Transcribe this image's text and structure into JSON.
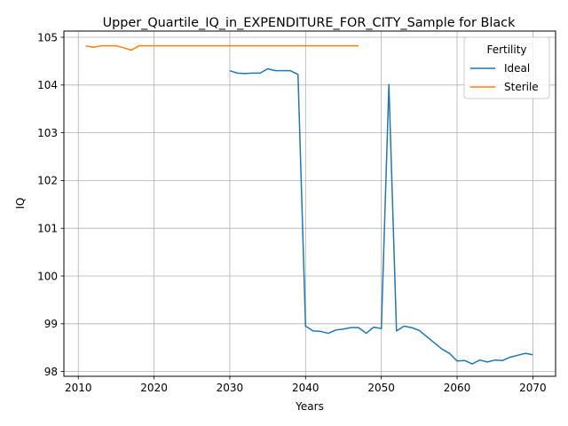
{
  "chart_data": {
    "type": "line",
    "title": "Upper_Quartile_IQ_in_EXPENDITURE_FOR_CITY_Sample for Black",
    "xlabel": "Years",
    "ylabel": "IQ",
    "xlim": [
      2008.1,
      2073
    ],
    "ylim": [
      97.9,
      105.13
    ],
    "x_ticks": [
      2010,
      2020,
      2030,
      2040,
      2050,
      2060,
      2070
    ],
    "y_ticks": [
      98,
      99,
      100,
      101,
      102,
      103,
      104,
      105
    ],
    "grid": true,
    "legend": {
      "title": "Fertility",
      "placement": "top-right",
      "entries": [
        "Ideal",
        "Sterile"
      ]
    },
    "series": [
      {
        "name": "Ideal",
        "color": "#1f77b4",
        "x": [
          2030,
          2031,
          2032,
          2033,
          2034,
          2035,
          2036,
          2037,
          2038,
          2039,
          2040,
          2041,
          2042,
          2043,
          2044,
          2045,
          2046,
          2047,
          2048,
          2049,
          2050,
          2051,
          2052,
          2053,
          2054,
          2055,
          2056,
          2057,
          2058,
          2059,
          2060,
          2061,
          2062,
          2063,
          2064,
          2065,
          2066,
          2067,
          2068,
          2069,
          2070
        ],
        "values": [
          104.3,
          104.25,
          104.24,
          104.25,
          104.25,
          104.34,
          104.3,
          104.3,
          104.3,
          104.22,
          98.95,
          98.85,
          98.84,
          98.8,
          98.87,
          98.89,
          98.92,
          98.92,
          98.8,
          98.93,
          98.9,
          104.01,
          98.85,
          98.95,
          98.92,
          98.86,
          98.73,
          98.6,
          98.47,
          98.38,
          98.22,
          98.23,
          98.16,
          98.24,
          98.2,
          98.24,
          98.23,
          98.3,
          98.34,
          98.38,
          98.35
        ]
      },
      {
        "name": "Sterile",
        "color": "#ff7f0e",
        "x": [
          2011,
          2012,
          2013,
          2014,
          2015,
          2016,
          2017,
          2018,
          2019,
          2020,
          2021,
          2022,
          2023,
          2024,
          2025,
          2026,
          2027,
          2028,
          2029,
          2030,
          2031,
          2032,
          2033,
          2034,
          2035,
          2036,
          2037,
          2038,
          2039,
          2040,
          2041,
          2042,
          2043,
          2044,
          2045,
          2046,
          2047
        ],
        "values": [
          104.82,
          104.79,
          104.82,
          104.82,
          104.82,
          104.78,
          104.73,
          104.82,
          104.82,
          104.82,
          104.82,
          104.82,
          104.82,
          104.82,
          104.82,
          104.82,
          104.82,
          104.82,
          104.82,
          104.82,
          104.82,
          104.82,
          104.82,
          104.82,
          104.82,
          104.82,
          104.82,
          104.82,
          104.82,
          104.82,
          104.82,
          104.82,
          104.82,
          104.82,
          104.82,
          104.82,
          104.82
        ]
      }
    ]
  }
}
